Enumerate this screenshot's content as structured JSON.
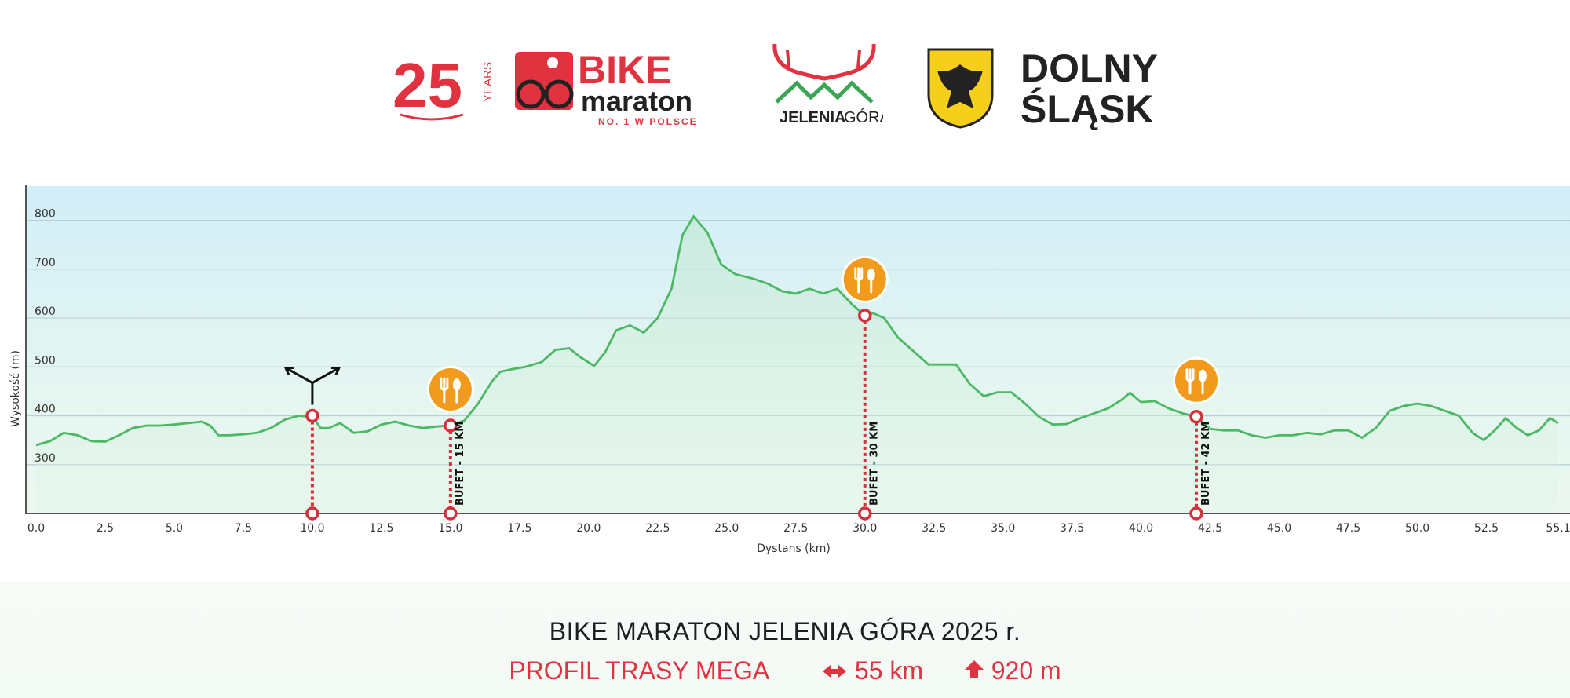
{
  "logos": {
    "years_number": "25",
    "years_word": "YEARS",
    "bike": "BIKE",
    "maraton": "maraton",
    "tagline": "NO. 1 W POLSCE",
    "jelenia": "JELENIA",
    "gora": "GÓRA",
    "dolny": "DOLNY",
    "slask": "ŚLĄSK"
  },
  "colors": {
    "profile_line": "#4cb863",
    "marker_red": "#d6303a",
    "food_orange": "#f29a1b",
    "brand_red": "#e0333f"
  },
  "chart_data": {
    "type": "area",
    "xlabel": "Dystans (km)",
    "ylabel": "Wysokość (m)",
    "xlim": [
      0,
      55.1
    ],
    "ylim": [
      200,
      870
    ],
    "x_ticks": [
      "0.0",
      "2.5",
      "5.0",
      "7.5",
      "10.0",
      "12.5",
      "15.0",
      "17.5",
      "20.0",
      "22.5",
      "25.0",
      "27.5",
      "30.0",
      "32.5",
      "35.0",
      "37.5",
      "40.0",
      "42.5",
      "45.0",
      "47.5",
      "50.0",
      "52.5",
      "55.1"
    ],
    "y_ticks": [
      "300",
      "400",
      "500",
      "600",
      "700",
      "800"
    ],
    "grid": true,
    "series": [
      {
        "x": [
          0,
          0.5,
          1,
          1.5,
          2,
          2.5,
          3,
          3.5,
          4,
          4.5,
          5,
          5.5,
          6,
          6.3,
          6.6,
          7,
          7.5,
          8,
          8.5,
          9,
          9.5,
          10,
          10.3,
          10.6,
          11,
          11.5,
          12,
          12.5,
          13,
          13.5,
          14,
          14.5,
          15,
          15.5,
          16,
          16.5,
          16.8,
          17.2,
          17.7,
          18.3,
          18.8,
          19.3,
          19.7,
          20.2,
          20.6,
          21,
          21.5,
          22,
          22.5,
          23,
          23.4,
          23.8,
          24.3,
          24.8,
          25.3,
          26,
          26.5,
          27,
          27.5,
          28,
          28.5,
          29,
          29.5,
          30,
          30.3,
          30.7,
          31.2,
          31.8,
          32.3,
          32.8,
          33.3,
          33.8,
          34.3,
          34.8,
          35.3,
          35.8,
          36.3,
          36.8,
          37.3,
          37.8,
          38.3,
          38.8,
          39.3,
          39.6,
          40,
          40.5,
          41,
          41.5,
          42,
          42.5,
          43,
          43.5,
          44,
          44.5,
          45,
          45.5,
          46,
          46.5,
          47,
          47.5,
          48,
          48.5,
          49,
          49.5,
          50,
          50.5,
          51,
          51.5,
          52,
          52.4,
          52.8,
          53.2,
          53.6,
          54,
          54.4,
          54.8,
          55.1
        ],
        "y": [
          340,
          348,
          365,
          360,
          348,
          347,
          360,
          375,
          380,
          380,
          382,
          385,
          388,
          380,
          360,
          360,
          362,
          365,
          375,
          392,
          400,
          398,
          375,
          375,
          385,
          365,
          368,
          382,
          388,
          380,
          375,
          378,
          380,
          390,
          425,
          470,
          490,
          495,
          500,
          510,
          535,
          538,
          520,
          502,
          530,
          575,
          585,
          570,
          600,
          660,
          770,
          808,
          775,
          710,
          690,
          680,
          670,
          655,
          650,
          660,
          650,
          660,
          630,
          605,
          610,
          600,
          560,
          530,
          505,
          505,
          505,
          465,
          440,
          448,
          448,
          425,
          398,
          382,
          383,
          395,
          405,
          415,
          433,
          447,
          428,
          430,
          415,
          405,
          398,
          373,
          370,
          370,
          360,
          355,
          360,
          360,
          365,
          362,
          370,
          370,
          355,
          375,
          410,
          420,
          425,
          420,
          410,
          400,
          365,
          350,
          370,
          395,
          375,
          360,
          370,
          395,
          385
        ]
      }
    ],
    "annotations": [
      {
        "type": "junction",
        "x": 10.0,
        "y": 400
      },
      {
        "type": "food",
        "x": 15.0,
        "y": 380,
        "label": "BUFET - 15 KM"
      },
      {
        "type": "food",
        "x": 30.0,
        "y": 605,
        "label": "BUFET - 30 KM"
      },
      {
        "type": "food",
        "x": 42.0,
        "y": 398,
        "label": "BUFET - 42 KM"
      }
    ]
  },
  "footer": {
    "title": "BIKE MARATON JELENIA GÓRA 2025 r.",
    "profile_label": "PROFIL TRASY MEGA",
    "distance": "55 km",
    "elevation": "920 m"
  }
}
